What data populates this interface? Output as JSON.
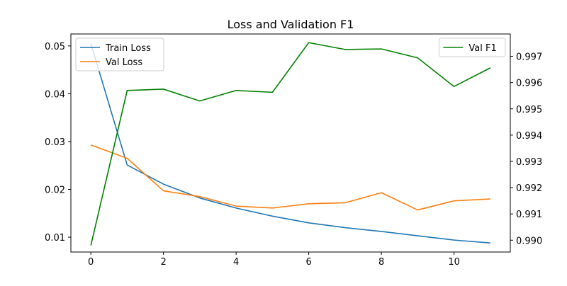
{
  "chart_data": {
    "type": "line",
    "title": "Loss and Validation F1",
    "xlabel": "",
    "ylabel_left": "",
    "ylabel_right": "",
    "x": [
      0,
      1,
      2,
      3,
      4,
      5,
      6,
      7,
      8,
      9,
      10,
      11
    ],
    "xlim": [
      -0.55,
      11.55
    ],
    "xticks": [
      0,
      2,
      4,
      6,
      8,
      10
    ],
    "y_left": {
      "ylim": [
        0.0069,
        0.0525
      ],
      "ticks": [
        0.01,
        0.02,
        0.03,
        0.04,
        0.05
      ],
      "tick_labels": [
        "0.01",
        "0.02",
        "0.03",
        "0.04",
        "0.05"
      ]
    },
    "y_right": {
      "ylim": [
        0.98955,
        0.99785
      ],
      "ticks": [
        0.99,
        0.991,
        0.992,
        0.993,
        0.994,
        0.995,
        0.996,
        0.997
      ],
      "tick_labels": [
        "0.990",
        "0.991",
        "0.992",
        "0.993",
        "0.994",
        "0.995",
        "0.996",
        "0.997"
      ]
    },
    "series": [
      {
        "name": "Train Loss",
        "axis": "left",
        "color": "#1f77b4",
        "values": [
          0.0505,
          0.0251,
          0.0211,
          0.0182,
          0.0161,
          0.0144,
          0.013,
          0.012,
          0.0112,
          0.0103,
          0.0094,
          0.0088
        ]
      },
      {
        "name": "Val Loss",
        "axis": "left",
        "color": "#ff7f0e",
        "values": [
          0.0293,
          0.0265,
          0.0197,
          0.0185,
          0.0165,
          0.0161,
          0.017,
          0.0172,
          0.0193,
          0.0157,
          0.0176,
          0.018
        ]
      },
      {
        "name": "Val F1",
        "axis": "right",
        "color": "#008000",
        "values": [
          0.9898,
          0.9957,
          0.99575,
          0.9953,
          0.9957,
          0.99563,
          0.99752,
          0.99726,
          0.99728,
          0.99694,
          0.99585,
          0.99656
        ]
      }
    ],
    "legends": [
      {
        "placement": "top-left",
        "entries": [
          "Train Loss",
          "Val Loss"
        ]
      },
      {
        "placement": "top-right",
        "entries": [
          "Val F1"
        ]
      }
    ],
    "grid": false
  }
}
